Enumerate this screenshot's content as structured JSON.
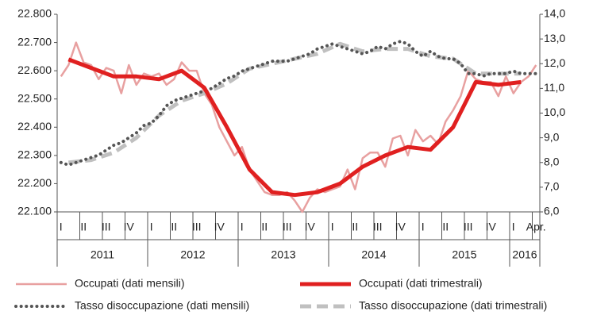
{
  "chart_data": {
    "type": "line",
    "categories": [
      "I",
      null,
      null,
      "II",
      null,
      null,
      "III",
      null,
      null,
      "IV",
      null,
      null,
      "I",
      null,
      null,
      "II",
      null,
      null,
      "III",
      null,
      null,
      "IV",
      null,
      null,
      "I",
      null,
      null,
      "II",
      null,
      null,
      "III",
      null,
      null,
      "IV",
      null,
      null,
      "I",
      null,
      null,
      "II",
      null,
      null,
      "III",
      null,
      null,
      "IV",
      null,
      null,
      "I",
      null,
      null,
      "II",
      null,
      null,
      "III",
      null,
      null,
      "IV",
      null,
      null,
      "I",
      null,
      null,
      "Apr."
    ],
    "years": [
      "2011",
      "2012",
      "2013",
      "2014",
      "2015",
      "2016"
    ],
    "ylim": [
      22100,
      22800
    ],
    "yticks": [
      {
        "value": 22100,
        "label": "22.100"
      },
      {
        "value": 22200,
        "label": "22.200"
      },
      {
        "value": 22300,
        "label": "22.300"
      },
      {
        "value": 22400,
        "label": "22.400"
      },
      {
        "value": 22500,
        "label": "22.500"
      },
      {
        "value": 22600,
        "label": "22.600"
      },
      {
        "value": 22700,
        "label": "22.700"
      },
      {
        "value": 22800,
        "label": "22.800"
      }
    ],
    "y2lim": [
      6,
      14
    ],
    "y2ticks": [
      {
        "value": 6,
        "label": "6,0"
      },
      {
        "value": 7,
        "label": "7,0"
      },
      {
        "value": 8,
        "label": "8,0"
      },
      {
        "value": 9,
        "label": "9,0"
      },
      {
        "value": 10,
        "label": "10,0"
      },
      {
        "value": 11,
        "label": "11,0"
      },
      {
        "value": 12,
        "label": "12,0"
      },
      {
        "value": 13,
        "label": "13,0"
      },
      {
        "value": 14,
        "label": "14,0"
      }
    ],
    "series": [
      {
        "name": "Occupati (dati mensili)",
        "color": "#e8a0a0",
        "style": "thin",
        "values": [
          22580,
          22620,
          22700,
          22630,
          22620,
          22570,
          22610,
          22600,
          22520,
          22620,
          22550,
          22590,
          22580,
          22590,
          22550,
          22570,
          22630,
          22600,
          22600,
          22520,
          22480,
          22400,
          22350,
          22300,
          22330,
          22250,
          22210,
          22170,
          22160,
          22160,
          22170,
          22140,
          22100,
          22150,
          22180,
          22170,
          22180,
          22190,
          22250,
          22180,
          22290,
          22310,
          22310,
          22260,
          22360,
          22370,
          22300,
          22390,
          22350,
          22370,
          22340,
          22420,
          22460,
          22510,
          22600,
          22570,
          22560,
          22560,
          22510,
          22580,
          22520,
          22560,
          22580,
          22620
        ]
      },
      {
        "name": "Occupati (dati trimestrali)",
        "color": "#e02020",
        "style": "thick",
        "x": [
          1,
          4,
          7,
          10,
          13,
          16,
          19,
          22,
          25,
          28,
          31,
          34,
          37,
          40,
          43,
          46,
          49,
          52,
          55,
          58,
          61
        ],
        "values": [
          22640,
          22610,
          22580,
          22580,
          22570,
          22600,
          22540,
          22400,
          22250,
          22170,
          22160,
          22170,
          22200,
          22260,
          22300,
          22330,
          22320,
          22400,
          22560,
          22550,
          22560
        ]
      },
      {
        "name": "Tasso disoccupazione (dati mensili)",
        "color": "#555555",
        "style": "dots",
        "axis": "y2",
        "values": [
          8.0,
          7.9,
          8.0,
          8.1,
          8.2,
          8.3,
          8.5,
          8.7,
          8.8,
          9.0,
          9.2,
          9.5,
          9.6,
          9.9,
          10.3,
          10.5,
          10.6,
          10.7,
          10.8,
          10.9,
          11.0,
          11.2,
          11.4,
          11.5,
          11.7,
          11.8,
          11.9,
          12.0,
          12.1,
          12.1,
          12.1,
          12.2,
          12.3,
          12.4,
          12.6,
          12.7,
          12.8,
          12.7,
          12.6,
          12.5,
          12.4,
          12.5,
          12.7,
          12.6,
          12.8,
          12.9,
          12.8,
          12.5,
          12.3,
          12.5,
          12.3,
          12.2,
          12.2,
          12.0,
          11.6,
          11.6,
          11.5,
          11.6,
          11.6,
          11.6,
          11.7,
          11.6,
          11.6,
          11.6
        ]
      },
      {
        "name": "Tasso disoccupazione (dati trimestrali)",
        "color": "#c0c0c0",
        "style": "dash",
        "axis": "y2",
        "x": [
          1,
          4,
          7,
          10,
          13,
          16,
          19,
          22,
          25,
          28,
          31,
          34,
          37,
          40,
          43,
          46,
          49,
          52,
          55,
          58,
          61
        ],
        "values": [
          8.0,
          8.1,
          8.4,
          9.0,
          9.9,
          10.5,
          10.8,
          11.2,
          11.8,
          12.0,
          12.2,
          12.4,
          12.8,
          12.5,
          12.6,
          12.6,
          12.3,
          12.2,
          11.6,
          11.6,
          11.6
        ]
      }
    ]
  }
}
